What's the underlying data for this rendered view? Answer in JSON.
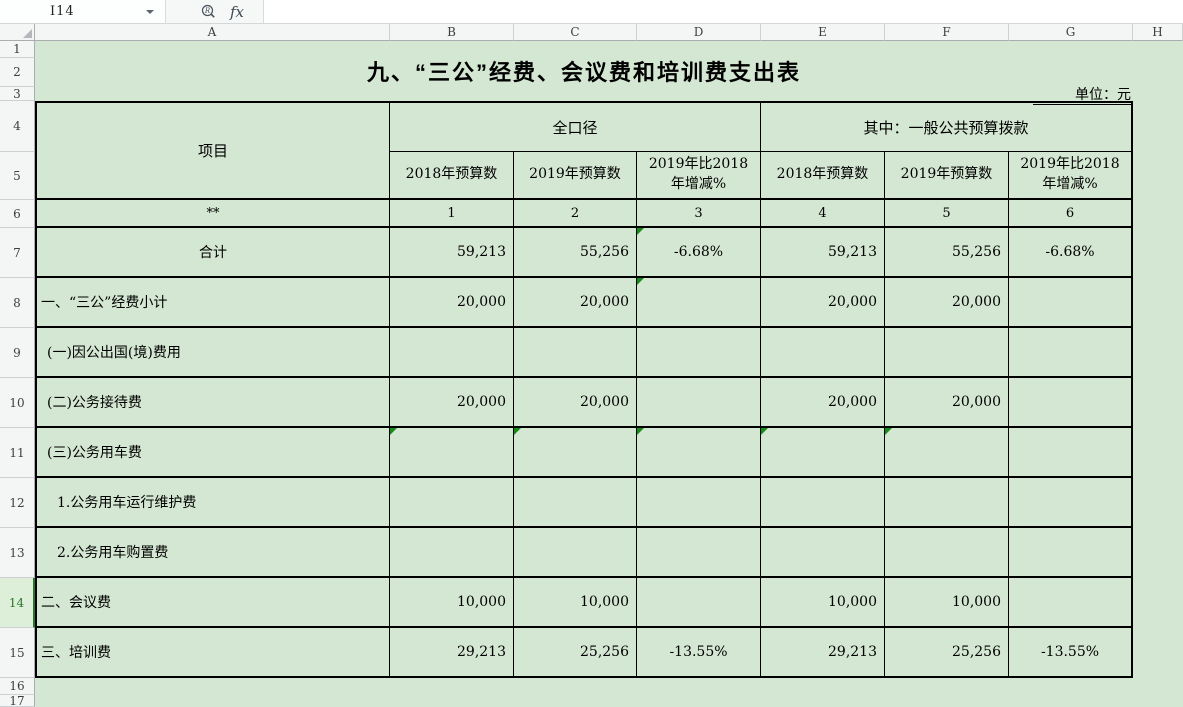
{
  "formula_bar": {
    "cell_reference": "I14",
    "fx_label": "fx"
  },
  "sheet": {
    "column_headers": [
      "A",
      "B",
      "C",
      "D",
      "E",
      "F",
      "G",
      "H"
    ],
    "row_headers": [
      "1",
      "2",
      "3",
      "4",
      "5",
      "6",
      "7",
      "8",
      "9",
      "10",
      "11",
      "12",
      "13",
      "14",
      "15",
      "16",
      "17"
    ],
    "selected_row": "14"
  },
  "title": "九、“三公”经费、会议费和培训费支出表",
  "unit_note": "单位：元",
  "table": {
    "item_column_header": "项目",
    "group_headers": [
      "全口径",
      "其中：一般公共预算拨款"
    ],
    "sub_headers": [
      "2018年预算数",
      "2019年预算数",
      "2019年比2018年增减%",
      "2018年预算数",
      "2019年预算数",
      "2019年比2018年增减%"
    ],
    "code_row": {
      "label": "**",
      "codes": [
        "1",
        "2",
        "3",
        "4",
        "5",
        "6"
      ]
    },
    "rows": [
      {
        "label": "合计",
        "align": "center",
        "indent": 0,
        "values": [
          "59,213",
          "55,256",
          "-6.68%",
          "59,213",
          "55,256",
          "-6.68%"
        ],
        "markers": [
          2
        ]
      },
      {
        "label": "一、“三公”经费小计",
        "align": "left",
        "indent": 0,
        "values": [
          "20,000",
          "20,000",
          "",
          "20,000",
          "20,000",
          ""
        ],
        "markers": [
          2
        ]
      },
      {
        "label": "(一)因公出国(境)费用",
        "align": "left",
        "indent": 1,
        "values": [
          "",
          "",
          "",
          "",
          "",
          ""
        ],
        "markers": []
      },
      {
        "label": "(二)公务接待费",
        "align": "left",
        "indent": 1,
        "values": [
          "20,000",
          "20,000",
          "",
          "20,000",
          "20,000",
          ""
        ],
        "markers": []
      },
      {
        "label": "(三)公务用车费",
        "align": "left",
        "indent": 1,
        "values": [
          "",
          "",
          "",
          "",
          "",
          ""
        ],
        "markers": [
          0,
          1,
          2,
          3,
          4
        ]
      },
      {
        "label": "1.公务用车运行维护费",
        "align": "left",
        "indent": 2,
        "values": [
          "",
          "",
          "",
          "",
          "",
          ""
        ],
        "markers": []
      },
      {
        "label": "2.公务用车购置费",
        "align": "left",
        "indent": 2,
        "values": [
          "",
          "",
          "",
          "",
          "",
          ""
        ],
        "markers": []
      },
      {
        "label": "二、会议费",
        "align": "left",
        "indent": 0,
        "values": [
          "10,000",
          "10,000",
          "",
          "10,000",
          "10,000",
          ""
        ],
        "markers": []
      },
      {
        "label": "三、培训费",
        "align": "left",
        "indent": 0,
        "values": [
          "29,213",
          "25,256",
          "-13.55%",
          "29,213",
          "25,256",
          "-13.55%"
        ],
        "markers": []
      }
    ]
  },
  "colors": {
    "sheet_green": "#d4e7d2",
    "marker_green": "#188a18",
    "selected_row_bg": "#ddefd8",
    "selected_row_fg": "#27742c"
  }
}
